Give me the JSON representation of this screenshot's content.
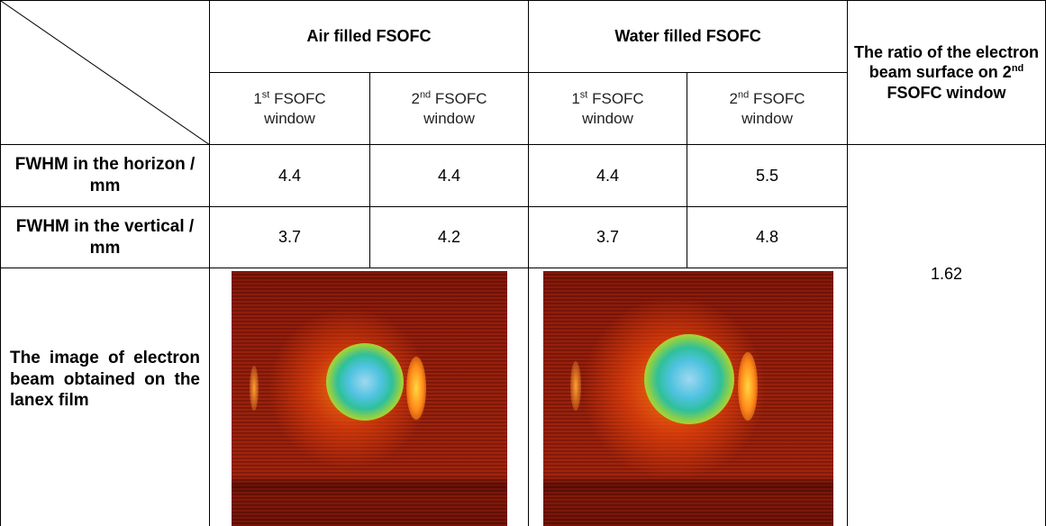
{
  "table": {
    "header": {
      "group1": "Air filled FSOFC",
      "group2": "Water filled FSOFC",
      "ratio": {
        "text": "The ratio of the electron beam surface on 2",
        "sup": "nd",
        "tail": "FSOFC window"
      },
      "subheaders": [
        {
          "ordinal": "1",
          "sup": "st",
          "line1": "FSOFC",
          "line2": "window"
        },
        {
          "ordinal": "2",
          "sup": "nd",
          "line1": "FSOFC",
          "line2": "window"
        },
        {
          "ordinal": "1",
          "sup": "st",
          "line1": "FSOFC",
          "line2": "window"
        },
        {
          "ordinal": "2",
          "sup": "nd",
          "line1": "FSOFC",
          "line2": "window"
        }
      ]
    },
    "rows": [
      {
        "label": "FWHM in the horizon / mm",
        "values": [
          "4.4",
          "4.4",
          "4.4",
          "5.5"
        ]
      },
      {
        "label": "FWHM in the vertical / mm",
        "values": [
          "3.7",
          "4.2",
          "3.7",
          "4.8"
        ]
      }
    ],
    "image_row_label": "The image of electron beam obtained on the lanex film",
    "ratio_value": "1.62"
  }
}
